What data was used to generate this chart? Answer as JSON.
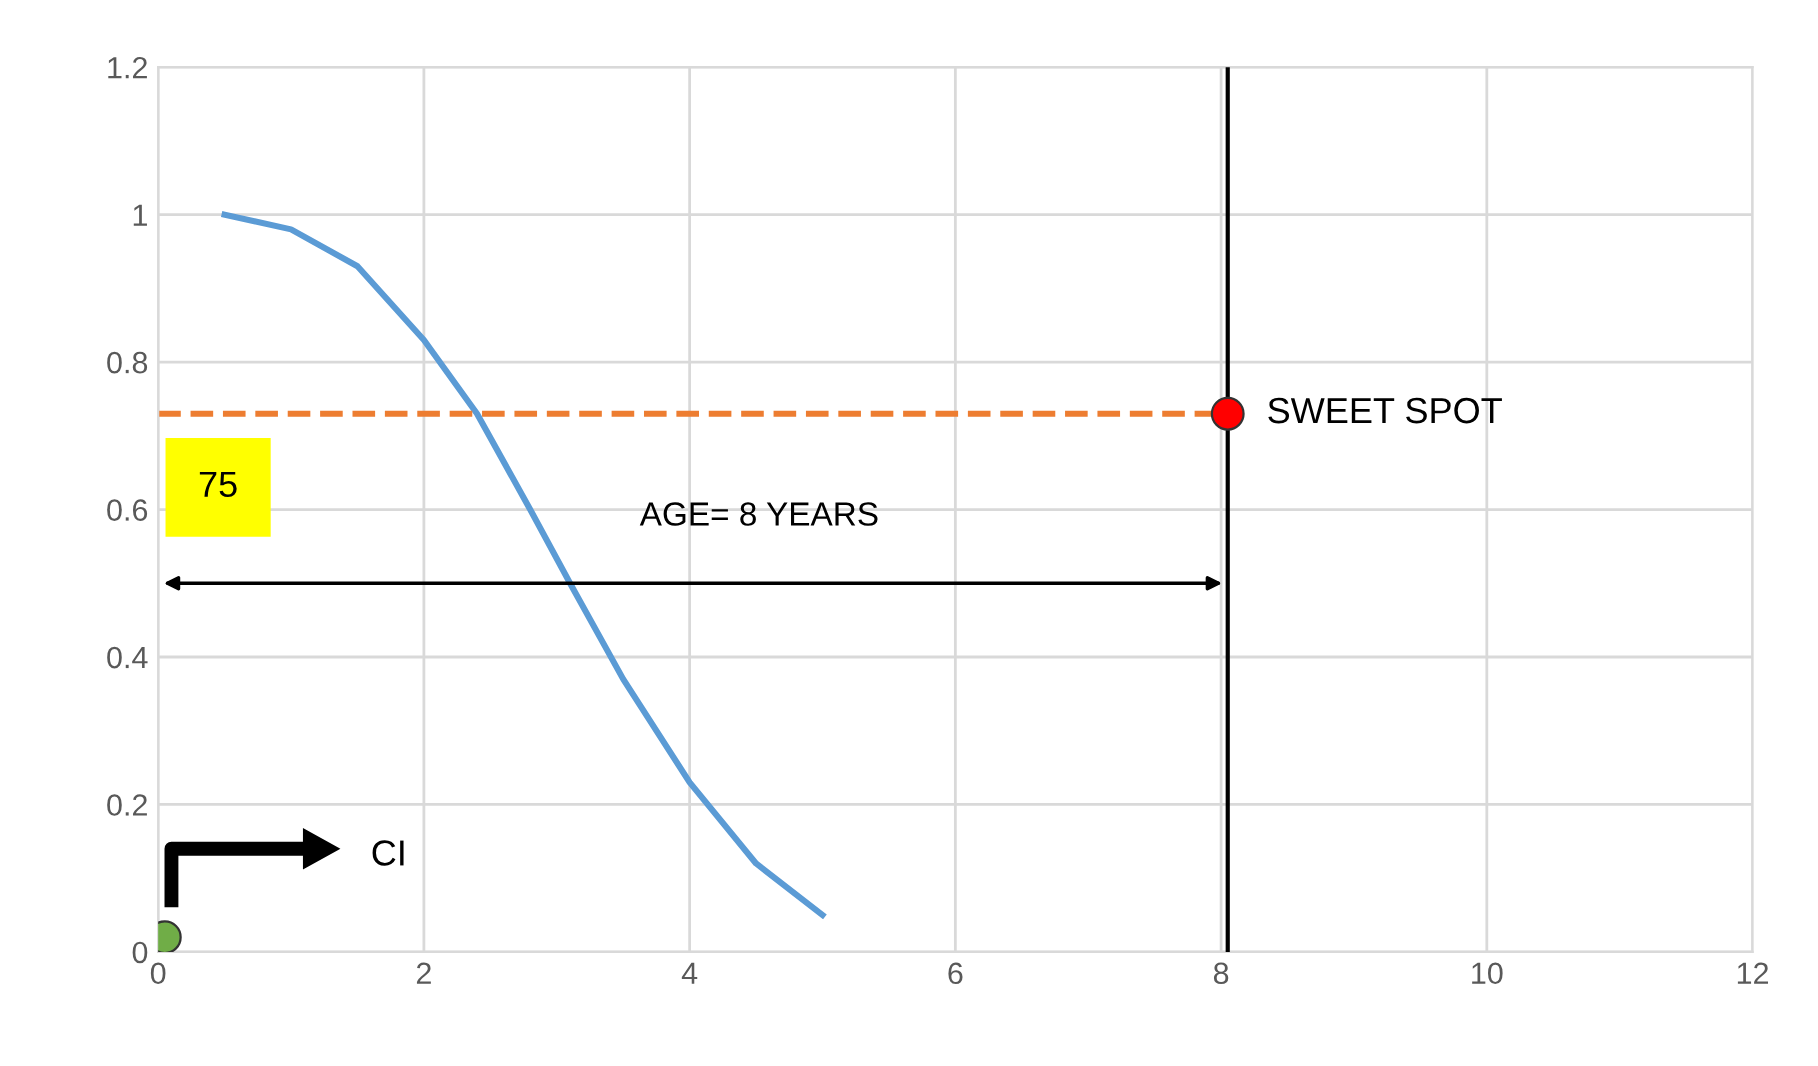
{
  "chart_data": {
    "type": "line",
    "xlim": [
      0,
      12
    ],
    "ylim": [
      0,
      1.2
    ],
    "xticks": [
      0,
      2,
      4,
      6,
      8,
      10,
      12
    ],
    "yticks": [
      0,
      0.2,
      0.4,
      0.6,
      0.8,
      1,
      1.2
    ],
    "grid": true,
    "series": [
      {
        "color": "#5b9bd5",
        "x": [
          0.5,
          1,
          1.5,
          2,
          2.4,
          2.8,
          3.1,
          3.5,
          4,
          4.5,
          5
        ],
        "values": [
          1,
          0.98,
          0.93,
          0.83,
          0.73,
          0.6,
          0.5,
          0.37,
          0.23,
          0.12,
          0.05
        ]
      },
      {
        "color": "#ed7d31",
        "line_style": "dashed",
        "x": [
          0,
          8.05
        ],
        "values": [
          0.73,
          0.73
        ]
      },
      {
        "type": "scatter",
        "color": "#ff0000",
        "x": [
          8.05
        ],
        "values": [
          0.73
        ]
      },
      {
        "type": "scatter",
        "color": "#70ad47",
        "x": [
          0.05
        ],
        "values": [
          0.02
        ]
      }
    ],
    "ref_lines": [
      {
        "axis": "x",
        "value": 8.05,
        "color": "#000000"
      }
    ],
    "annotations": [
      "SWEET SPOT",
      "AGE= 8 YEARS",
      "75",
      "CI"
    ]
  }
}
